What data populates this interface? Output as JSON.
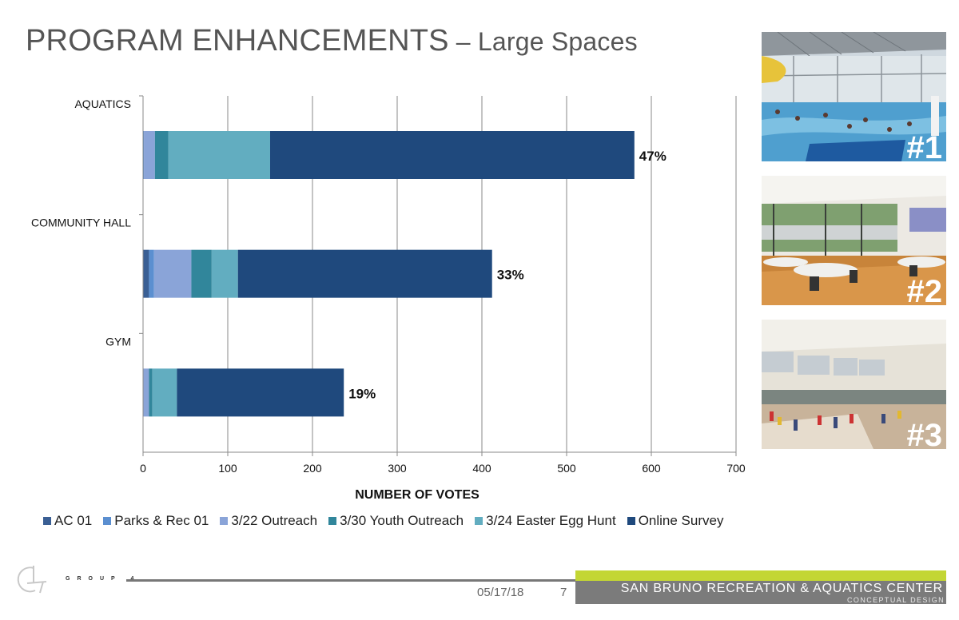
{
  "slide": {
    "title_main": "PROGRAM ENHANCEMENTS",
    "title_dash": " – ",
    "title_sub": "Large Spaces"
  },
  "photos": [
    {
      "label": "#1",
      "subject": "aquatics"
    },
    {
      "label": "#2",
      "subject": "community-hall"
    },
    {
      "label": "#3",
      "subject": "gym"
    }
  ],
  "chart_data": {
    "type": "bar",
    "orientation": "horizontal",
    "stacked": true,
    "title": "",
    "xlabel": "NUMBER OF VOTES",
    "ylabel": "",
    "xlim": [
      0,
      700
    ],
    "xticks": [
      0,
      100,
      200,
      300,
      400,
      500,
      600,
      700
    ],
    "grid": true,
    "legend_position": "bottom",
    "categories": [
      "AQUATICS",
      "COMMUNITY HALL",
      "GYM"
    ],
    "series": [
      {
        "name": "AC 01",
        "color": "#3a5f94",
        "values": [
          0,
          7,
          0
        ]
      },
      {
        "name": "Parks & Rec 01",
        "color": "#5b8fd0",
        "values": [
          1,
          6,
          0
        ]
      },
      {
        "name": "3/22 Outreach",
        "color": "#8aa4d8",
        "values": [
          13,
          44,
          7
        ]
      },
      {
        "name": "3/30 Youth Outreach",
        "color": "#31869b",
        "values": [
          16,
          24,
          4
        ]
      },
      {
        "name": "3/24 Easter Egg Hunt",
        "color": "#62adc0",
        "values": [
          120,
          31,
          29
        ]
      },
      {
        "name": "Online Survey",
        "color": "#1f497d",
        "values": [
          430,
          300,
          197
        ]
      }
    ],
    "data_labels": [
      "47%",
      "33%",
      "19%"
    ]
  },
  "footer": {
    "logo_text": "GROUP 4",
    "date": "05/17/18",
    "page": "7",
    "org": "SAN BRUNO RECREATION & AQUATICS CENTER",
    "org_sub": "CONCEPTUAL DESIGN"
  },
  "colors": {
    "accent_green": "#c3d634",
    "footer_gray": "#7b7b7b",
    "title_gray": "#555555"
  }
}
